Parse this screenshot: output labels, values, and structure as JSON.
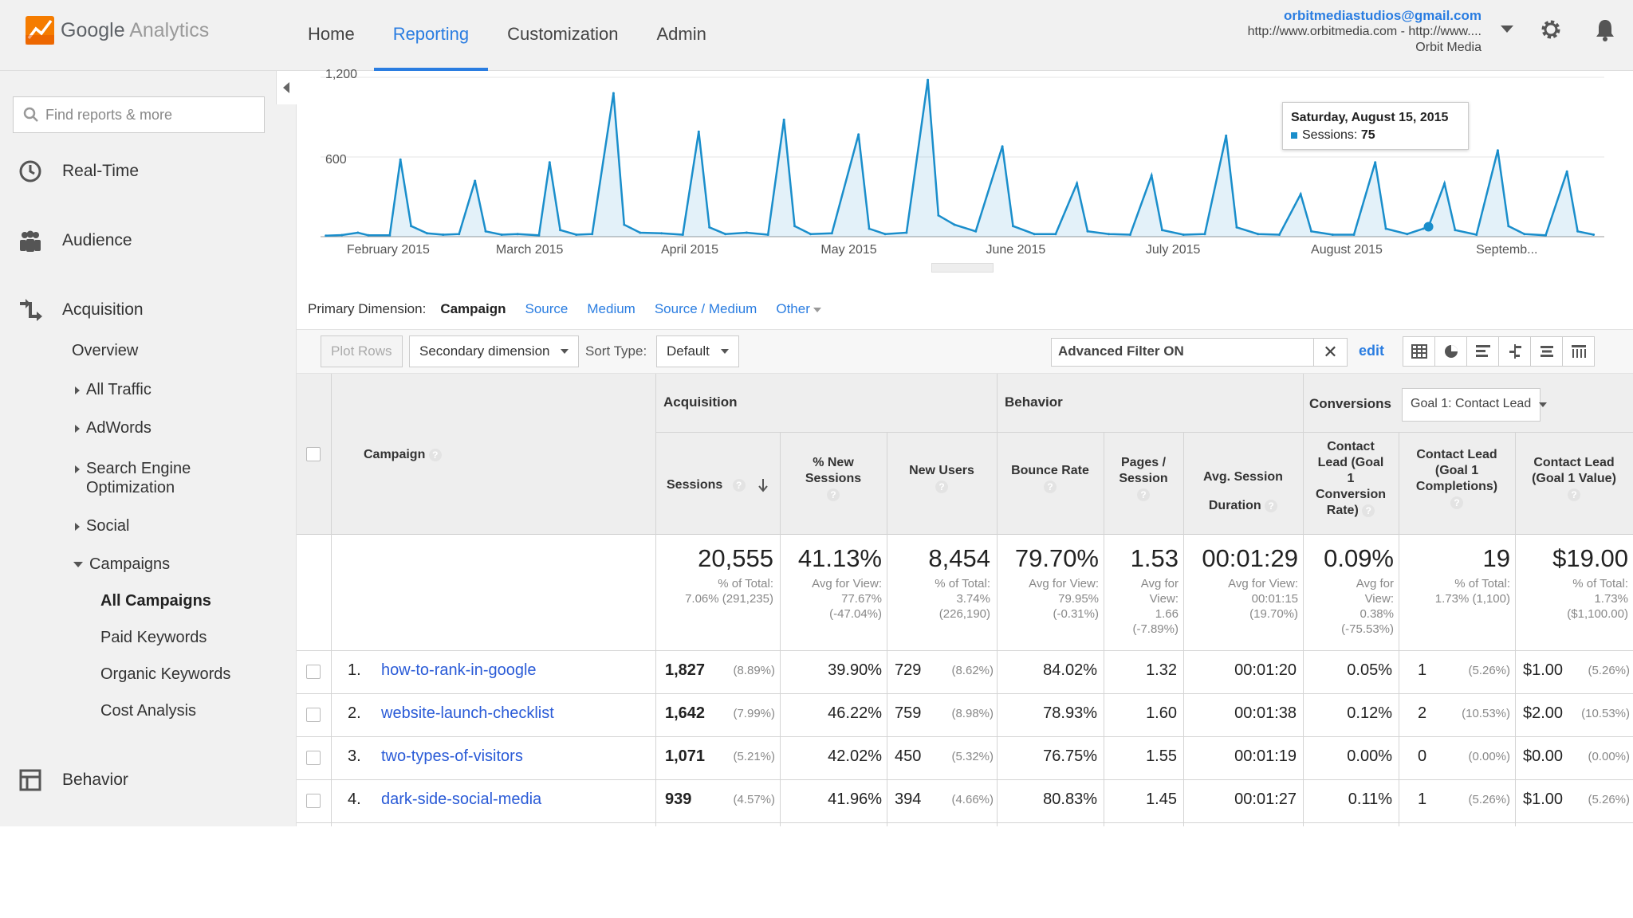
{
  "header": {
    "brand_google": "Google",
    "brand_product": "Analytics",
    "nav": [
      "Home",
      "Reporting",
      "Customization",
      "Admin"
    ],
    "active_nav": "Reporting",
    "account_email": "orbitmediastudios@gmail.com",
    "account_url": "http://www.orbitmedia.com - http://www....",
    "account_name": "Orbit Media",
    "icons": [
      "settings-gear-icon",
      "notifications-bell-icon"
    ]
  },
  "sidebar": {
    "search_placeholder": "Find reports & more",
    "items": [
      {
        "label": "Real-Time",
        "icon": "clock-icon"
      },
      {
        "label": "Audience",
        "icon": "people-icon"
      },
      {
        "label": "Acquisition",
        "icon": "acquisition-arrows-icon"
      },
      {
        "label": "Behavior",
        "icon": "behavior-layout-icon"
      }
    ],
    "acquisition_sub": {
      "overview": "Overview",
      "all_traffic": "All Traffic",
      "adwords": "AdWords",
      "seo_line1": "Search Engine",
      "seo_line2": "Optimization",
      "social": "Social",
      "campaigns": "Campaigns",
      "campaigns_children": [
        "All Campaigns",
        "Paid Keywords",
        "Organic Keywords",
        "Cost Analysis"
      ],
      "selected": "All Campaigns"
    }
  },
  "chart_data": {
    "type": "line",
    "series": [
      {
        "name": "Sessions",
        "color": "#1a8ecb"
      }
    ],
    "y_ticks": [
      "1,200",
      "600"
    ],
    "ylim": [
      0,
      1200
    ],
    "x_labels": [
      "February 2015",
      "March 2015",
      "April 2015",
      "May 2015",
      "June 2015",
      "July 2015",
      "August 2015",
      "Septemb..."
    ],
    "points": [
      [
        "2015-01-20",
        8
      ],
      [
        "2015-01-23",
        12
      ],
      [
        "2015-01-26",
        30
      ],
      [
        "2015-01-28",
        10
      ],
      [
        "2015-02-01",
        10
      ],
      [
        "2015-02-03",
        580
      ],
      [
        "2015-02-05",
        80
      ],
      [
        "2015-02-08",
        25
      ],
      [
        "2015-02-11",
        15
      ],
      [
        "2015-02-14",
        20
      ],
      [
        "2015-02-17",
        420
      ],
      [
        "2015-02-19",
        40
      ],
      [
        "2015-02-22",
        15
      ],
      [
        "2015-02-25",
        20
      ],
      [
        "2015-03-01",
        10
      ],
      [
        "2015-03-03",
        560
      ],
      [
        "2015-03-05",
        50
      ],
      [
        "2015-03-08",
        15
      ],
      [
        "2015-03-11",
        20
      ],
      [
        "2015-03-15",
        1080
      ],
      [
        "2015-03-17",
        90
      ],
      [
        "2015-03-20",
        30
      ],
      [
        "2015-03-24",
        25
      ],
      [
        "2015-03-28",
        15
      ],
      [
        "2015-03-31",
        790
      ],
      [
        "2015-04-02",
        70
      ],
      [
        "2015-04-05",
        20
      ],
      [
        "2015-04-09",
        30
      ],
      [
        "2015-04-13",
        15
      ],
      [
        "2015-04-16",
        880
      ],
      [
        "2015-04-18",
        80
      ],
      [
        "2015-04-21",
        20
      ],
      [
        "2015-04-25",
        25
      ],
      [
        "2015-04-30",
        770
      ],
      [
        "2015-05-02",
        60
      ],
      [
        "2015-05-05",
        20
      ],
      [
        "2015-05-09",
        30
      ],
      [
        "2015-05-13",
        1180
      ],
      [
        "2015-05-15",
        160
      ],
      [
        "2015-05-18",
        90
      ],
      [
        "2015-05-22",
        40
      ],
      [
        "2015-05-27",
        680
      ],
      [
        "2015-05-29",
        80
      ],
      [
        "2015-06-02",
        20
      ],
      [
        "2015-06-06",
        20
      ],
      [
        "2015-06-10",
        400
      ],
      [
        "2015-06-12",
        40
      ],
      [
        "2015-06-16",
        20
      ],
      [
        "2015-06-20",
        15
      ],
      [
        "2015-06-24",
        460
      ],
      [
        "2015-06-26",
        50
      ],
      [
        "2015-06-30",
        15
      ],
      [
        "2015-07-04",
        20
      ],
      [
        "2015-07-08",
        760
      ],
      [
        "2015-07-10",
        70
      ],
      [
        "2015-07-14",
        20
      ],
      [
        "2015-07-18",
        15
      ],
      [
        "2015-07-22",
        320
      ],
      [
        "2015-07-24",
        40
      ],
      [
        "2015-07-28",
        15
      ],
      [
        "2015-08-01",
        15
      ],
      [
        "2015-08-05",
        560
      ],
      [
        "2015-08-07",
        60
      ],
      [
        "2015-08-11",
        20
      ],
      [
        "2015-08-14",
        60
      ],
      [
        "2015-08-15",
        75
      ],
      [
        "2015-08-18",
        400
      ],
      [
        "2015-08-20",
        50
      ],
      [
        "2015-08-24",
        15
      ],
      [
        "2015-08-28",
        650
      ],
      [
        "2015-08-30",
        80
      ],
      [
        "2015-09-02",
        20
      ],
      [
        "2015-09-06",
        10
      ],
      [
        "2015-09-10",
        490
      ],
      [
        "2015-09-12",
        40
      ],
      [
        "2015-09-15",
        15
      ]
    ],
    "tooltip": {
      "date": "Saturday, August 15, 2015",
      "label": "Sessions:",
      "value": "75"
    }
  },
  "primary_dimension": {
    "label": "Primary Dimension:",
    "current": "Campaign",
    "options": [
      "Source",
      "Medium",
      "Source / Medium"
    ],
    "other": "Other"
  },
  "toolbar": {
    "plot_rows": "Plot Rows",
    "secondary_dimension": "Secondary dimension",
    "sort_type_label": "Sort Type:",
    "sort_type_value": "Default",
    "filter_text": "Advanced Filter ON",
    "filter_clear": "✕",
    "edit": "edit",
    "view_icons": [
      "table-view-icon",
      "pie-view-icon",
      "performance-view-icon",
      "comparison-view-icon",
      "term-cloud-view-icon",
      "pivot-view-icon"
    ]
  },
  "table": {
    "groups": {
      "acquisition": "Acquisition",
      "behavior": "Behavior",
      "conversions": "Conversions"
    },
    "goal_select": "Goal 1: Contact Lead",
    "headers": {
      "campaign": "Campaign",
      "sessions": "Sessions",
      "new_sessions": [
        "% New",
        "Sessions"
      ],
      "new_users": "New Users",
      "bounce": "Bounce Rate",
      "pages": [
        "Pages /",
        "Session"
      ],
      "duration": [
        "Avg. Session",
        "Duration"
      ],
      "conv_rate": [
        "Contact",
        "Lead (Goal",
        "1",
        "Conversion",
        "Rate)"
      ],
      "completions": [
        "Contact Lead",
        "(Goal 1",
        "Completions)"
      ],
      "value": [
        "Contact Lead",
        "(Goal 1 Value)"
      ]
    },
    "totals": {
      "sessions": {
        "big": "20,555",
        "sub": [
          "% of Total:",
          "7.06% (291,235)"
        ]
      },
      "new_sessions": {
        "big": "41.13%",
        "sub": [
          "Avg for View:",
          "77.67%",
          "(-47.04%)"
        ]
      },
      "new_users": {
        "big": "8,454",
        "sub": [
          "% of Total:",
          "3.74%",
          "(226,190)"
        ]
      },
      "bounce": {
        "big": "79.70%",
        "sub": [
          "Avg for View:",
          "79.95%",
          "(-0.31%)"
        ]
      },
      "pages": {
        "big": "1.53",
        "sub": [
          "Avg for",
          "View:",
          "1.66",
          "(-7.89%)"
        ]
      },
      "duration": {
        "big": "00:01:29",
        "sub": [
          "Avg for View:",
          "00:01:15",
          "(19.70%)"
        ]
      },
      "conv_rate": {
        "big": "0.09%",
        "sub": [
          "Avg for",
          "View:",
          "0.38%",
          "(-75.53%)"
        ]
      },
      "completions": {
        "big": "19",
        "sub": [
          "% of Total:",
          "1.73% (1,100)"
        ]
      },
      "value": {
        "big": "$19.00",
        "sub": [
          "% of Total:",
          "1.73%",
          "($1,100.00)"
        ]
      }
    },
    "rows": [
      {
        "num": "1.",
        "campaign": "how-to-rank-in-google",
        "sessions": "1,827",
        "sessions_pct": "(8.89%)",
        "new_sessions": "39.90%",
        "new_users": "729",
        "new_users_pct": "(8.62%)",
        "bounce": "84.02%",
        "pages": "1.32",
        "duration": "00:01:20",
        "conv_rate": "0.05%",
        "completions": "1",
        "completions_pct": "(5.26%)",
        "value": "$1.00",
        "value_pct": "(5.26%)"
      },
      {
        "num": "2.",
        "campaign": "website-launch-checklist",
        "sessions": "1,642",
        "sessions_pct": "(7.99%)",
        "new_sessions": "46.22%",
        "new_users": "759",
        "new_users_pct": "(8.98%)",
        "bounce": "78.93%",
        "pages": "1.60",
        "duration": "00:01:38",
        "conv_rate": "0.12%",
        "completions": "2",
        "completions_pct": "(10.53%)",
        "value": "$2.00",
        "value_pct": "(10.53%)"
      },
      {
        "num": "3.",
        "campaign": "two-types-of-visitors",
        "sessions": "1,071",
        "sessions_pct": "(5.21%)",
        "new_sessions": "42.02%",
        "new_users": "450",
        "new_users_pct": "(5.32%)",
        "bounce": "76.75%",
        "pages": "1.55",
        "duration": "00:01:19",
        "conv_rate": "0.00%",
        "completions": "0",
        "completions_pct": "(0.00%)",
        "value": "$0.00",
        "value_pct": "(0.00%)"
      },
      {
        "num": "4.",
        "campaign": "dark-side-social-media",
        "sessions": "939",
        "sessions_pct": "(4.57%)",
        "new_sessions": "41.96%",
        "new_users": "394",
        "new_users_pct": "(4.66%)",
        "bounce": "80.83%",
        "pages": "1.45",
        "duration": "00:01:27",
        "conv_rate": "0.11%",
        "completions": "1",
        "completions_pct": "(5.26%)",
        "value": "$1.00",
        "value_pct": "(5.26%)"
      }
    ]
  }
}
